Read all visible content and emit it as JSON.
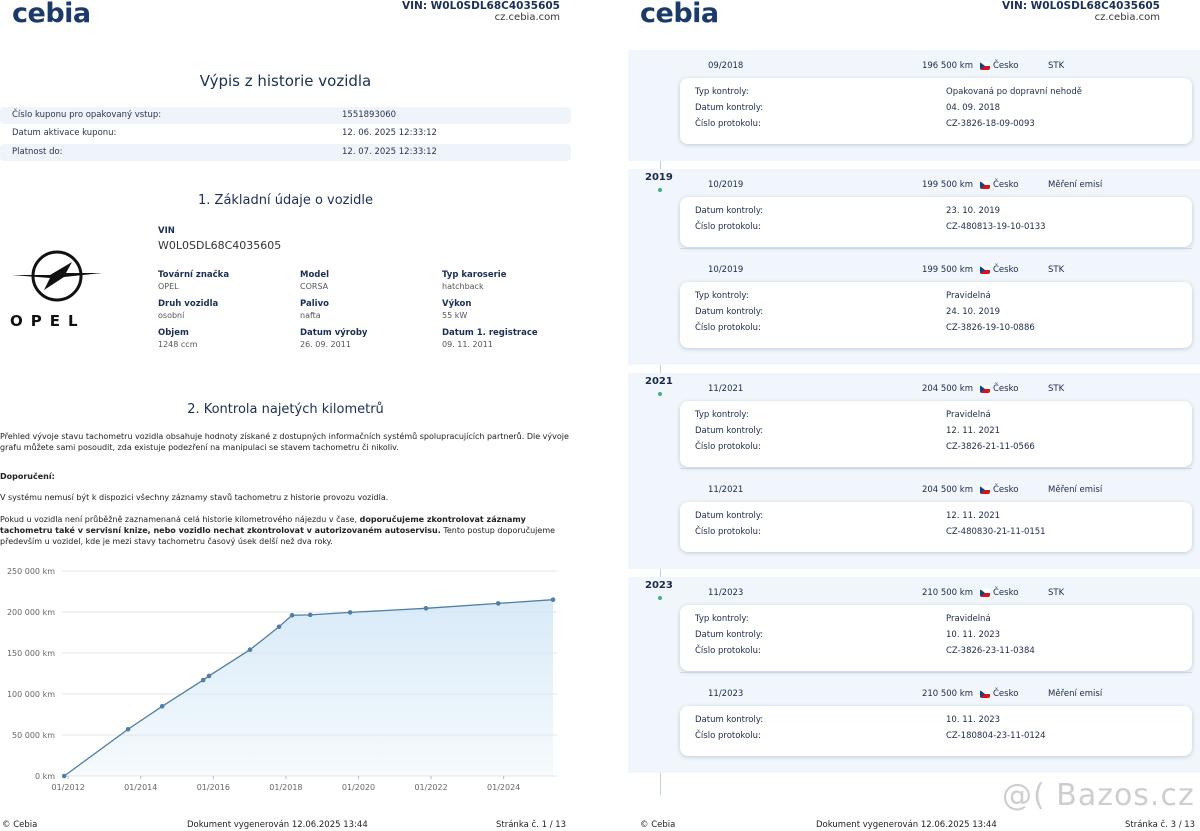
{
  "pages": [
    {
      "header": {
        "logo": "cebia",
        "vin": "VIN: W0L0SDL68C4035605",
        "site": "cz.cebia.com"
      },
      "footer": {
        "copyright": "© Cebia",
        "generated": "Dokument vygenerován 12.06.2025 13:44",
        "page": "Stránka č. 1 / 13"
      }
    },
    {
      "header": {
        "logo": "cebia",
        "vin": "VIN: W0L0SDL68C4035605",
        "site": "cz.cebia.com"
      },
      "footer": {
        "copyright": "© Cebia",
        "generated": "Dokument vygenerován 12.06.2025 13:44",
        "page": "Stránka č. 3 / 13"
      }
    }
  ],
  "report": {
    "title": "Výpis z historie vozidla",
    "info_rows": [
      [
        "Číslo kuponu pro opakovaný vstup:",
        "1551893060"
      ],
      [
        "Datum aktivace kuponu:",
        "12. 06. 2025 12:33:12"
      ],
      [
        "Platnost do:",
        "12. 07. 2025 12:33:12"
      ]
    ],
    "section1_title": "1. Základní údaje o vozidle",
    "brand_logo": "OPEL",
    "vin_label": "VIN",
    "vin_value": "W0L0SDL68C4035605",
    "fields": [
      {
        "label": "Tovární značka",
        "value": "OPEL"
      },
      {
        "label": "Model",
        "value": "CORSA"
      },
      {
        "label": "Typ karoserie",
        "value": "hatchback"
      },
      {
        "label": "Druh vozidla",
        "value": "osobní"
      },
      {
        "label": "Palivo",
        "value": "nafta"
      },
      {
        "label": "Výkon",
        "value": "55 kW"
      },
      {
        "label": "Objem",
        "value": "1248 ccm"
      },
      {
        "label": "Datum výroby",
        "value": "26. 09. 2011"
      },
      {
        "label": "Datum 1. registrace",
        "value": "09. 11. 2011"
      }
    ],
    "section2_title": "2. Kontrola najetých kilometrů",
    "paragraph1": "Přehled vývoje stavu tachometru vozidla obsahuje hodnoty získané z dostupných informačních systémů spolupracujících partnerů. Dle vývoje grafu můžete sami posoudit, zda existuje podezření na manipulaci se stavem tachometru či nikoliv.",
    "recommendation_label": "Doporučení:",
    "paragraph2": "V systému nemusí být k dispozici všechny záznamy stavů tachometru z historie provozu vozidla.",
    "paragraph3_start": "Pokud u vozidla není průběžně zaznamenaná celá historie kilometrového nájezdu v čase, ",
    "paragraph3_bold": "doporučujeme zkontrolovat záznamy tachometru také v servisní knize, nebo vozidlo nechat zkontrolovat v autorizovaném autoservisu.",
    "paragraph3_end": " Tento postup doporučujeme především u vozidel, kde je mezi stavy tachometru časový úsek delší než dva roky."
  },
  "chart_data": {
    "type": "area",
    "x": [
      2011.89,
      2013.65,
      2014.59,
      2015.72,
      2015.88,
      2017.01,
      2017.81,
      2018.17,
      2018.67,
      2019.77,
      2021.86,
      2023.85,
      2025.36
    ],
    "values": [
      0,
      57000,
      85000,
      117000,
      122000,
      154000,
      182000,
      196000,
      196500,
      199500,
      204500,
      210500,
      215000
    ],
    "color": "#4f7ea8",
    "fill": "#d4e8f7",
    "xlim": [
      2011.83,
      2025.47
    ],
    "xticks": [
      {
        "value": 2012,
        "label": "01/2012"
      },
      {
        "value": 2014,
        "label": "01/2014"
      },
      {
        "value": 2016,
        "label": "01/2016"
      },
      {
        "value": 2018,
        "label": "01/2018"
      },
      {
        "value": 2020,
        "label": "01/2020"
      },
      {
        "value": 2022,
        "label": "01/2022"
      },
      {
        "value": 2024,
        "label": "01/2024"
      }
    ],
    "ylim": [
      0,
      250000
    ],
    "yticks": [
      {
        "value": 0,
        "label": "0 km"
      },
      {
        "value": 50000,
        "label": "50 000 km"
      },
      {
        "value": 100000,
        "label": "100 000 km"
      },
      {
        "value": 150000,
        "label": "150 000 km"
      },
      {
        "value": 200000,
        "label": "200 000 km"
      },
      {
        "value": 250000,
        "label": "250 000 km"
      }
    ],
    "grid": true
  },
  "history": {
    "groups": [
      {
        "entries": [
          {
            "date": "09/2018",
            "km": "196 500 km",
            "country": "Česko",
            "kind": "STK",
            "details": [
              [
                "Typ kontroly:",
                "Opakovaná po dopravní nehodě"
              ],
              [
                "Datum kontroly:",
                "04. 09. 2018"
              ],
              [
                "Číslo protokolu:",
                "CZ-3826-18-09-0093"
              ]
            ]
          }
        ]
      },
      {
        "year": "2019",
        "entries": [
          {
            "date": "10/2019",
            "km": "199 500 km",
            "country": "Česko",
            "kind": "Měření emisí",
            "details": [
              [
                "Datum kontroly:",
                "23. 10. 2019"
              ],
              [
                "Číslo protokolu:",
                "CZ-480813-19-10-0133"
              ]
            ]
          },
          {
            "date": "10/2019",
            "km": "199 500 km",
            "country": "Česko",
            "kind": "STK",
            "details": [
              [
                "Typ kontroly:",
                "Pravidelná"
              ],
              [
                "Datum kontroly:",
                "24. 10. 2019"
              ],
              [
                "Číslo protokolu:",
                "CZ-3826-19-10-0886"
              ]
            ]
          }
        ]
      },
      {
        "year": "2021",
        "entries": [
          {
            "date": "11/2021",
            "km": "204 500 km",
            "country": "Česko",
            "kind": "STK",
            "details": [
              [
                "Typ kontroly:",
                "Pravidelná"
              ],
              [
                "Datum kontroly:",
                "12. 11. 2021"
              ],
              [
                "Číslo protokolu:",
                "CZ-3826-21-11-0566"
              ]
            ]
          },
          {
            "date": "11/2021",
            "km": "204 500 km",
            "country": "Česko",
            "kind": "Měření emisí",
            "details": [
              [
                "Datum kontroly:",
                "12. 11. 2021"
              ],
              [
                "Číslo protokolu:",
                "CZ-480830-21-11-0151"
              ]
            ]
          }
        ]
      },
      {
        "year": "2023",
        "entries": [
          {
            "date": "11/2023",
            "km": "210 500 km",
            "country": "Česko",
            "kind": "STK",
            "details": [
              [
                "Typ kontroly:",
                "Pravidelná"
              ],
              [
                "Datum kontroly:",
                "10. 11. 2023"
              ],
              [
                "Číslo protokolu:",
                "CZ-3826-23-11-0384"
              ]
            ]
          },
          {
            "date": "11/2023",
            "km": "210 500 km",
            "country": "Česko",
            "kind": "Měření emisí",
            "details": [
              [
                "Datum kontroly:",
                "10. 11. 2023"
              ],
              [
                "Číslo protokolu:",
                "CZ-180804-23-11-0124"
              ]
            ]
          }
        ]
      }
    ]
  },
  "watermark": "@( Bazos.cz"
}
